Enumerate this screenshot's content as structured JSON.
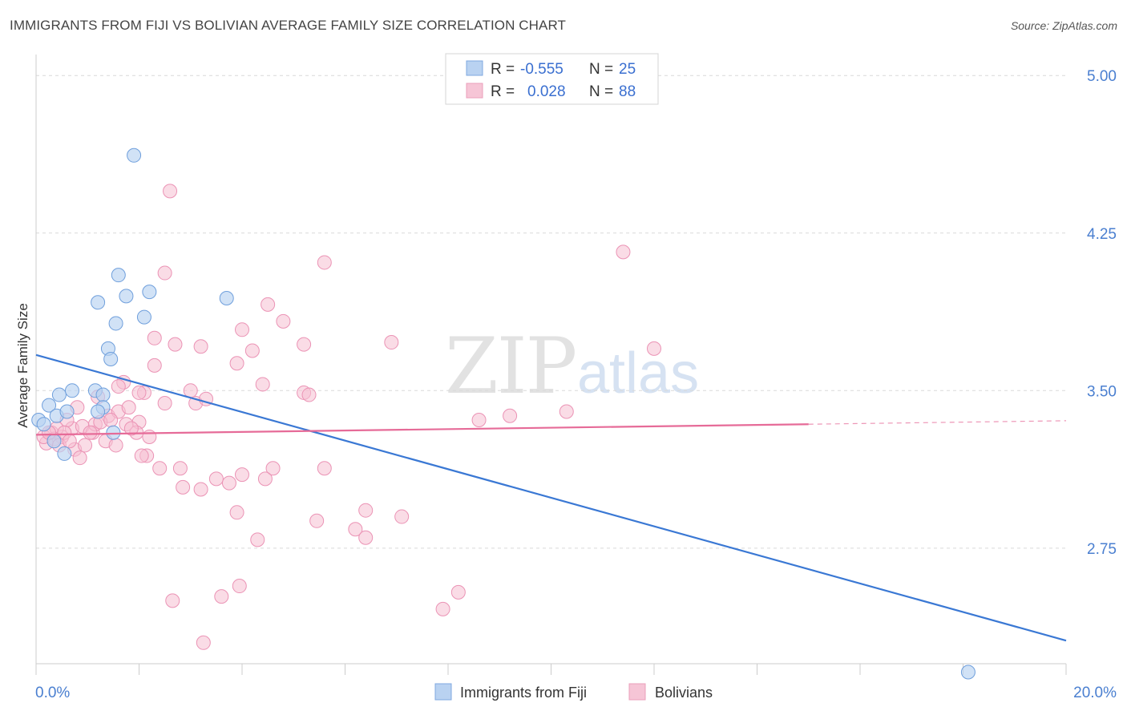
{
  "title": "IMMIGRANTS FROM FIJI VS BOLIVIAN AVERAGE FAMILY SIZE CORRELATION CHART",
  "source": "Source: ZipAtlas.com",
  "watermark": {
    "zip": "ZIP",
    "atlas": "atlas"
  },
  "legend": {
    "rows": [
      {
        "r_label": "R =",
        "r_value": "-0.555",
        "n_label": "N =",
        "n_value": "25"
      },
      {
        "r_label": "R =",
        "r_value": "0.028",
        "n_label": "N =",
        "n_value": "88"
      }
    ]
  },
  "bottom_legend": [
    "Immigrants from Fiji",
    "Bolivians"
  ],
  "colors": {
    "fiji": "#3a78d4",
    "fiji_fill": "#b9d2f1",
    "bolivia": "#e66b98",
    "bolivia_fill": "#f6bfd2",
    "tick": "#4a7fd0",
    "grid": "#d9d9d9"
  },
  "chart_data": {
    "type": "scatter",
    "title": "IMMIGRANTS FROM FIJI VS BOLIVIAN AVERAGE FAMILY SIZE CORRELATION CHART",
    "xlabel": "",
    "ylabel": "Average Family Size",
    "xlim": [
      0,
      20
    ],
    "ylim": [
      2.2,
      5.1
    ],
    "x_tick_labels": [
      "0.0%",
      "20.0%"
    ],
    "y_ticks": [
      2.75,
      3.5,
      4.25,
      5.0
    ],
    "y_tick_labels": [
      "2.75",
      "3.50",
      "4.25",
      "5.00"
    ],
    "grid": true,
    "legend_position": "top-center",
    "series": [
      {
        "name": "Immigrants from Fiji",
        "x": [
          1.9,
          1.6,
          1.75,
          2.1,
          2.2,
          1.2,
          1.55,
          1.4,
          1.45,
          3.7,
          0.45,
          0.7,
          1.15,
          1.3,
          1.3,
          0.25,
          0.4,
          0.6,
          1.2,
          0.05,
          0.15,
          0.35,
          1.5,
          0.55,
          18.1
        ],
        "y": [
          4.62,
          4.05,
          3.95,
          3.85,
          3.97,
          3.92,
          3.82,
          3.7,
          3.65,
          3.94,
          3.48,
          3.5,
          3.5,
          3.48,
          3.42,
          3.43,
          3.38,
          3.4,
          3.4,
          3.36,
          3.34,
          3.26,
          3.3,
          3.2,
          2.16
        ]
      },
      {
        "name": "Bolivians",
        "x": [
          2.6,
          2.5,
          11.4,
          5.6,
          2.3,
          4.0,
          4.8,
          4.5,
          2.3,
          2.7,
          3.2,
          3.9,
          5.2,
          4.2,
          6.9,
          12.0,
          1.7,
          2.1,
          1.6,
          3.0,
          4.4,
          5.2,
          5.3,
          0.3,
          0.5,
          0.7,
          0.9,
          1.1,
          1.4,
          1.6,
          1.8,
          2.0,
          2.2,
          2.5,
          3.1,
          3.3,
          1.2,
          0.8,
          0.6,
          0.4,
          0.2,
          0.15,
          0.35,
          0.55,
          0.75,
          0.95,
          1.15,
          1.35,
          1.55,
          1.75,
          1.95,
          2.15,
          2.4,
          2.8,
          3.2,
          3.5,
          4.0,
          4.6,
          5.6,
          6.4,
          7.1,
          8.6,
          9.2,
          10.3,
          0.25,
          0.45,
          0.65,
          0.85,
          1.05,
          1.25,
          1.45,
          1.85,
          2.05,
          2.85,
          3.75,
          4.45,
          5.45,
          6.2,
          2.65,
          3.6,
          3.95,
          4.3,
          6.4,
          8.2,
          7.9,
          3.9,
          3.25,
          2.0
        ],
        "y": [
          4.45,
          4.06,
          4.16,
          4.11,
          3.75,
          3.79,
          3.83,
          3.91,
          3.62,
          3.72,
          3.71,
          3.63,
          3.72,
          3.69,
          3.73,
          3.7,
          3.54,
          3.49,
          3.52,
          3.5,
          3.53,
          3.49,
          3.48,
          3.3,
          3.28,
          3.32,
          3.33,
          3.3,
          3.38,
          3.4,
          3.42,
          3.35,
          3.28,
          3.44,
          3.44,
          3.46,
          3.47,
          3.42,
          3.36,
          3.32,
          3.25,
          3.28,
          3.27,
          3.3,
          3.22,
          3.24,
          3.34,
          3.26,
          3.24,
          3.34,
          3.3,
          3.19,
          3.13,
          3.13,
          3.03,
          3.08,
          3.1,
          3.13,
          3.13,
          2.93,
          2.9,
          3.36,
          3.38,
          3.4,
          3.3,
          3.24,
          3.26,
          3.18,
          3.3,
          3.35,
          3.36,
          3.32,
          3.19,
          3.04,
          3.06,
          3.08,
          2.88,
          2.84,
          2.5,
          2.52,
          2.57,
          2.79,
          2.8,
          2.54,
          2.46,
          2.92,
          2.3,
          3.49
        ]
      }
    ],
    "trendlines": [
      {
        "series": "Immigrants from Fiji",
        "x": [
          0,
          20
        ],
        "y": [
          3.67,
          2.31
        ]
      },
      {
        "series": "Bolivians",
        "x": [
          0,
          15
        ],
        "y": [
          3.29,
          3.34
        ],
        "dashed_extension_x": [
          15,
          20
        ]
      }
    ]
  }
}
